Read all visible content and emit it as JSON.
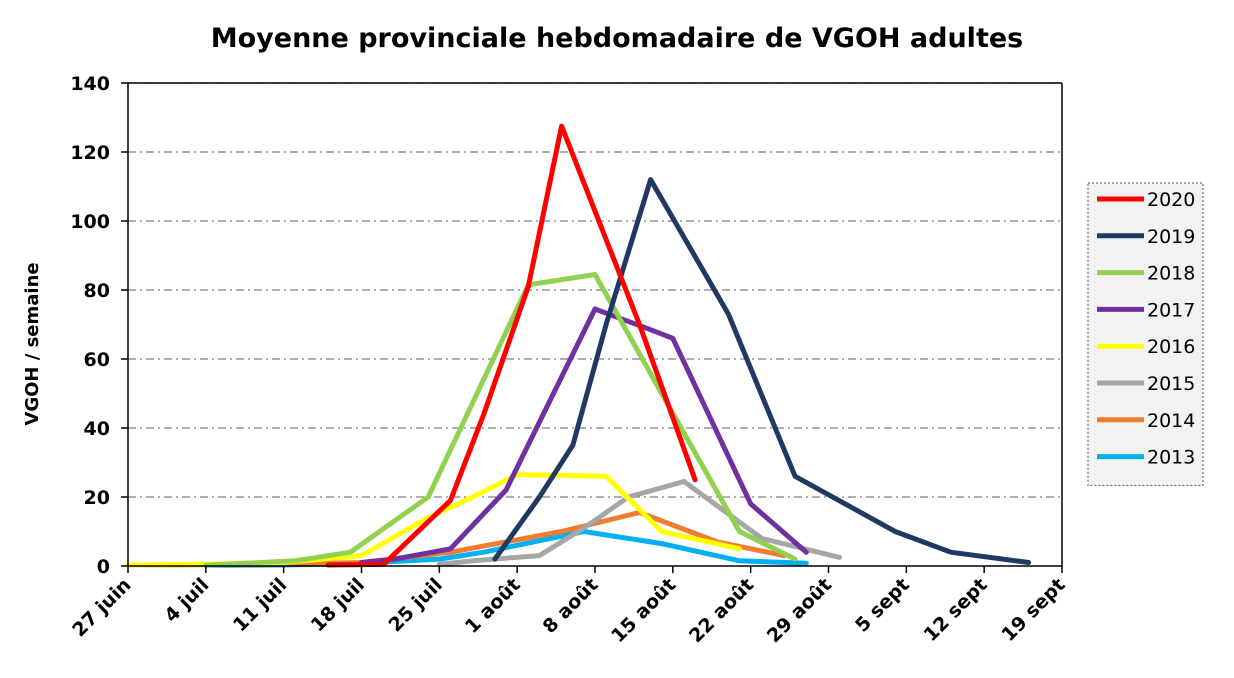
{
  "chart_data": {
    "type": "line",
    "title": "Moyenne provinciale hebdomadaire de VGOH adultes",
    "ylabel": "VGOH / semaine",
    "xlabel": "",
    "x_ticks": [
      "27 juin",
      "4 juil",
      "11 juil",
      "18 juil",
      "25 juil",
      "1 août",
      "8 août",
      "15 août",
      "22 août",
      "29 août",
      "5 sept",
      "12 sept",
      "19 sept"
    ],
    "x_range": [
      "27 juin",
      "19 sept"
    ],
    "ylim": [
      0,
      140
    ],
    "y_ticks": [
      0,
      20,
      40,
      60,
      80,
      100,
      120,
      140
    ],
    "grid": "horizontal",
    "legend_position": "right",
    "series": [
      {
        "name": "2020",
        "color": "#ff0000",
        "points": [
          [
            "15 juil",
            0.3
          ],
          [
            "20 juil",
            0.5
          ],
          [
            "26 juil",
            19
          ],
          [
            "29 juil",
            44
          ],
          [
            "2 août",
            81
          ],
          [
            "5 août",
            127.5
          ],
          [
            "12 août",
            70
          ],
          [
            "17 août",
            25
          ]
        ]
      },
      {
        "name": "2019",
        "color": "#1f3864",
        "points": [
          [
            "30 juil",
            2
          ],
          [
            "3 août",
            20
          ],
          [
            "6 août",
            35
          ],
          [
            "9 août",
            70
          ],
          [
            "13 août",
            112
          ],
          [
            "20 août",
            73
          ],
          [
            "26 août",
            26
          ],
          [
            "4 sept",
            10
          ],
          [
            "9 sept",
            4
          ],
          [
            "16 sept",
            1
          ]
        ]
      },
      {
        "name": "2018",
        "color": "#92d050",
        "points": [
          [
            "4 juil",
            0.2
          ],
          [
            "12 juil",
            1.5
          ],
          [
            "17 juil",
            4
          ],
          [
            "24 juil",
            20
          ],
          [
            "2 août",
            81.5
          ],
          [
            "8 août",
            84.5
          ],
          [
            "14 août",
            50
          ],
          [
            "21 août",
            10
          ],
          [
            "26 août",
            2
          ]
        ]
      },
      {
        "name": "2017",
        "color": "#7030a0",
        "points": [
          [
            "18 juil",
            1
          ],
          [
            "21 juil",
            2
          ],
          [
            "26 juil",
            5
          ],
          [
            "31 juil",
            22
          ],
          [
            "8 août",
            74.5
          ],
          [
            "13 août",
            68.5
          ],
          [
            "15 août",
            66
          ],
          [
            "22 août",
            18
          ],
          [
            "27 août",
            4
          ]
        ]
      },
      {
        "name": "2016",
        "color": "#ffff00",
        "points": [
          [
            "27 juin",
            0.3
          ],
          [
            "4 juil",
            0.5
          ],
          [
            "11 juil",
            1
          ],
          [
            "18 juil",
            3
          ],
          [
            "24 juil",
            14
          ],
          [
            "28 juil",
            20
          ],
          [
            "1 août",
            26.5
          ],
          [
            "9 août",
            26
          ],
          [
            "14 août",
            10
          ],
          [
            "21 août",
            5
          ]
        ]
      },
      {
        "name": "2015",
        "color": "#a6a6a6",
        "points": [
          [
            "25 juil",
            0.5
          ],
          [
            "28 juil",
            1.5
          ],
          [
            "3 août",
            3
          ],
          [
            "7 août",
            11
          ],
          [
            "11 août",
            20
          ],
          [
            "16 août",
            24.5
          ],
          [
            "23 août",
            8
          ],
          [
            "30 août",
            2.5
          ]
        ]
      },
      {
        "name": "2014",
        "color": "#ed7d31",
        "points": [
          [
            "28 juin",
            0.3
          ],
          [
            "11 juil",
            0.5
          ],
          [
            "18 juil",
            1
          ],
          [
            "26 juil",
            4
          ],
          [
            "5 août",
            10
          ],
          [
            "12 août",
            15.5
          ],
          [
            "19 août",
            7
          ],
          [
            "25 août",
            3
          ]
        ]
      },
      {
        "name": "2013",
        "color": "#00b0f0",
        "points": [
          [
            "4 juil",
            0.2
          ],
          [
            "11 juil",
            0.3
          ],
          [
            "18 juil",
            0.8
          ],
          [
            "25 juil",
            2
          ],
          [
            "29 juil",
            4
          ],
          [
            "7 août",
            10
          ],
          [
            "14 août",
            6.5
          ],
          [
            "21 août",
            1.5
          ],
          [
            "27 août",
            0.8
          ]
        ]
      }
    ]
  }
}
